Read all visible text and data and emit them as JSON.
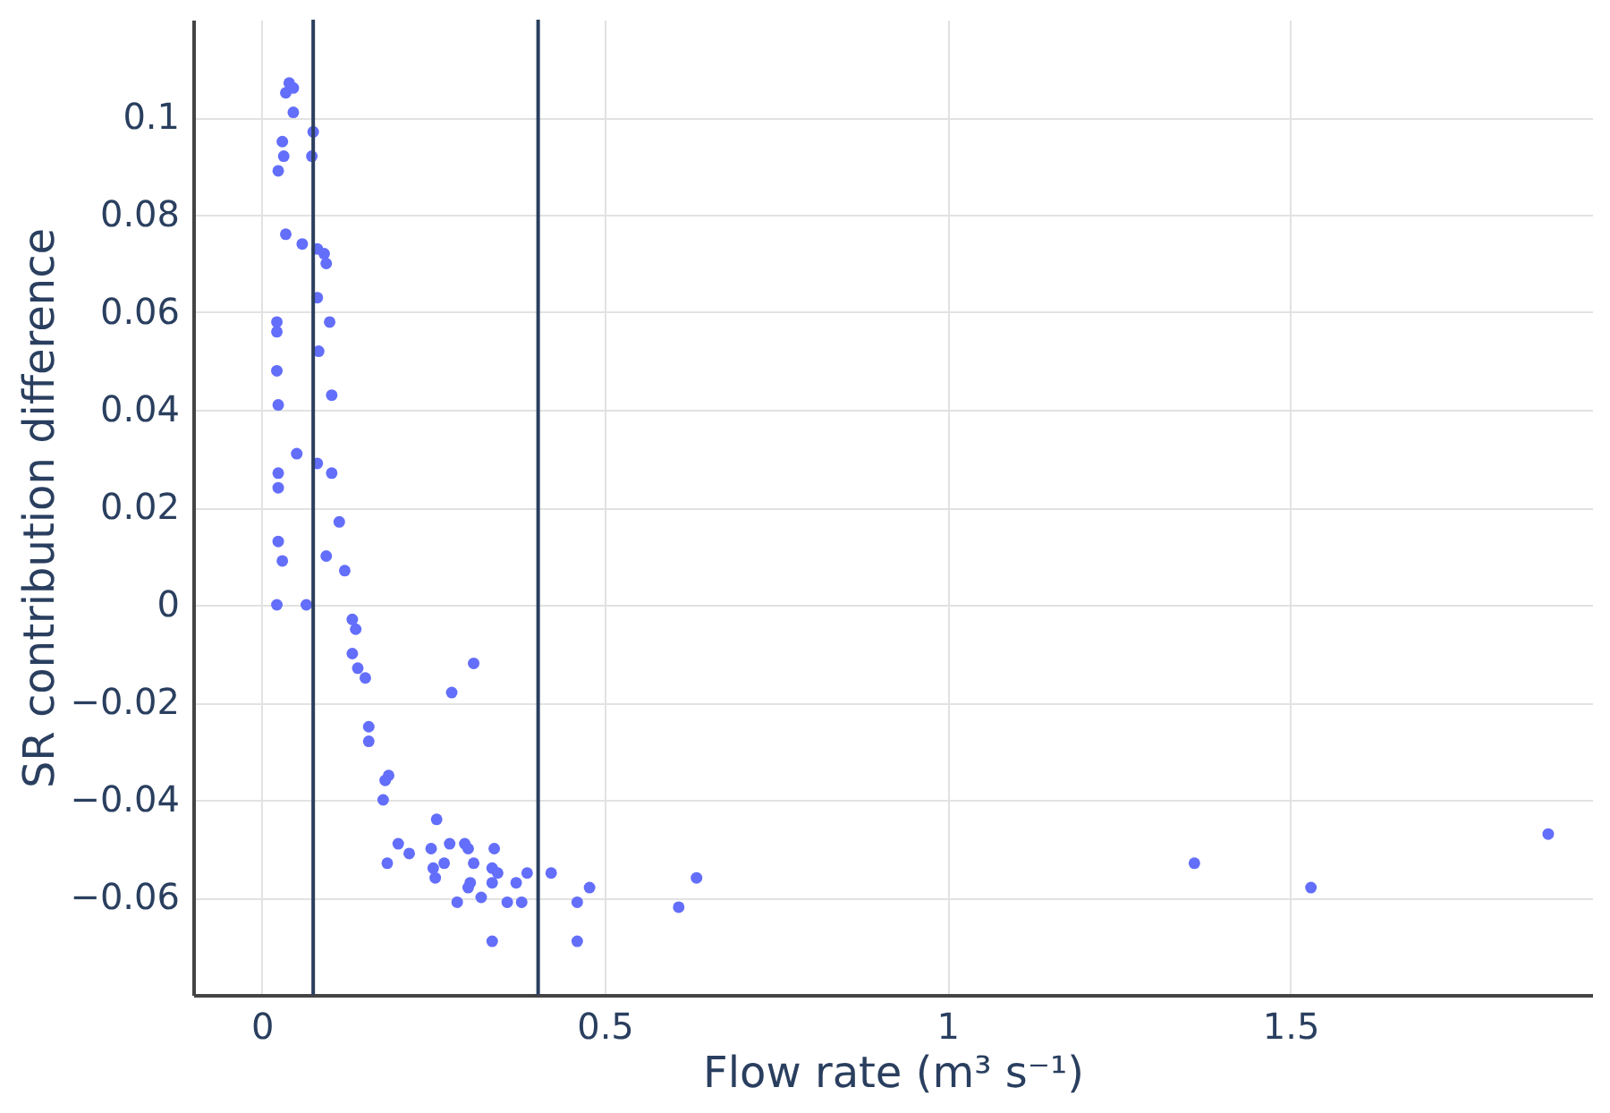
{
  "chart_data": {
    "type": "scatter",
    "xlabel": "Flow rate (m³ s⁻¹)",
    "ylabel": "SR contribution difference",
    "xlim": [
      -0.1,
      1.94
    ],
    "ylim": [
      -0.08,
      0.12
    ],
    "xticks": [
      0,
      0.5,
      1,
      1.5
    ],
    "yticks": [
      -0.06,
      -0.04,
      -0.02,
      0,
      0.02,
      0.04,
      0.06,
      0.08,
      0.1
    ],
    "grid": true,
    "marker": "circle",
    "ref_lines": [
      {
        "axis": "x",
        "value": 0.075,
        "color": "#2a3f5f"
      },
      {
        "axis": "x",
        "value": 0.403,
        "color": "#2a3f5f"
      }
    ],
    "series": [
      {
        "color": "#636efa",
        "x": [
          0.04,
          0.035,
          0.046,
          0.046,
          0.075,
          0.03,
          0.073,
          0.032,
          0.024,
          0.035,
          0.059,
          0.081,
          0.091,
          0.094,
          0.081,
          0.022,
          0.099,
          0.022,
          0.083,
          0.022,
          0.102,
          0.024,
          0.051,
          0.081,
          0.024,
          0.102,
          0.024,
          0.113,
          0.024,
          0.03,
          0.094,
          0.121,
          0.022,
          0.065,
          0.132,
          0.137,
          0.132,
          0.14,
          0.151,
          0.156,
          0.156,
          0.185,
          0.18,
          0.177,
          0.309,
          0.277,
          0.255,
          0.199,
          0.183,
          0.215,
          0.247,
          0.25,
          0.253,
          0.266,
          0.274,
          0.296,
          0.301,
          0.309,
          0.339,
          0.336,
          0.344,
          0.304,
          0.301,
          0.336,
          0.32,
          0.285,
          0.358,
          0.379,
          0.371,
          0.387,
          0.422,
          0.478,
          0.46,
          0.46,
          0.336,
          0.608,
          0.634,
          1.36,
          1.53,
          1.876
        ],
        "values": [
          0.107,
          0.105,
          0.106,
          0.101,
          0.097,
          0.095,
          0.092,
          0.092,
          0.089,
          0.076,
          0.074,
          0.073,
          0.072,
          0.07,
          0.063,
          0.058,
          0.058,
          0.056,
          0.052,
          0.048,
          0.043,
          0.041,
          0.031,
          0.029,
          0.027,
          0.027,
          0.024,
          0.017,
          0.013,
          0.009,
          0.01,
          0.007,
          0.0,
          0.0,
          -0.003,
          -0.005,
          -0.01,
          -0.013,
          -0.015,
          -0.025,
          -0.028,
          -0.035,
          -0.036,
          -0.04,
          -0.012,
          -0.018,
          -0.044,
          -0.049,
          -0.053,
          -0.051,
          -0.05,
          -0.054,
          -0.056,
          -0.053,
          -0.049,
          -0.049,
          -0.05,
          -0.053,
          -0.05,
          -0.054,
          -0.055,
          -0.057,
          -0.058,
          -0.057,
          -0.06,
          -0.061,
          -0.061,
          -0.061,
          -0.057,
          -0.055,
          -0.055,
          -0.058,
          -0.061,
          -0.069,
          -0.069,
          -0.062,
          -0.056,
          -0.053,
          -0.058,
          -0.047
        ]
      }
    ]
  }
}
